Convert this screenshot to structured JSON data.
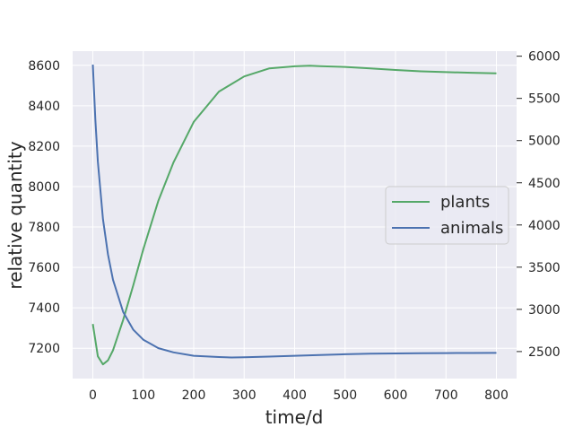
{
  "chart_data": {
    "type": "line",
    "title": "",
    "xlabel": "time/d",
    "ylabel": "relative quantity",
    "xlim": [
      -40,
      840
    ],
    "xticks": [
      0,
      100,
      200,
      300,
      400,
      500,
      600,
      700,
      800
    ],
    "ylim_left": [
      7050,
      8670
    ],
    "yticks_left": [
      7200,
      7400,
      7600,
      7800,
      8000,
      8200,
      8400,
      8600
    ],
    "ylim_right": [
      2180,
      6060
    ],
    "yticks_right": [
      2500,
      3000,
      3500,
      4000,
      4500,
      5000,
      5500,
      6000
    ],
    "grid": true,
    "legend_position": "center-right",
    "series": [
      {
        "name": "plants",
        "axis": "left",
        "color": "#55a868",
        "x": [
          0,
          10,
          20,
          30,
          40,
          60,
          80,
          100,
          130,
          160,
          200,
          250,
          300,
          350,
          400,
          430,
          450,
          500,
          550,
          600,
          650,
          700,
          750,
          800
        ],
        "y": [
          7320,
          7160,
          7120,
          7140,
          7190,
          7340,
          7510,
          7690,
          7930,
          8120,
          8320,
          8470,
          8545,
          8585,
          8595,
          8598,
          8596,
          8592,
          8585,
          8577,
          8570,
          8566,
          8563,
          8560
        ]
      },
      {
        "name": "animals",
        "axis": "right",
        "color": "#4c72b0",
        "x": [
          0,
          5,
          10,
          20,
          30,
          40,
          60,
          80,
          100,
          130,
          160,
          200,
          250,
          275,
          300,
          350,
          400,
          450,
          500,
          550,
          600,
          650,
          700,
          750,
          800
        ],
        "y": [
          5900,
          5250,
          4750,
          4070,
          3650,
          3350,
          2970,
          2760,
          2640,
          2540,
          2490,
          2450,
          2435,
          2430,
          2432,
          2440,
          2450,
          2460,
          2468,
          2474,
          2478,
          2480,
          2482,
          2483,
          2484
        ]
      }
    ]
  }
}
